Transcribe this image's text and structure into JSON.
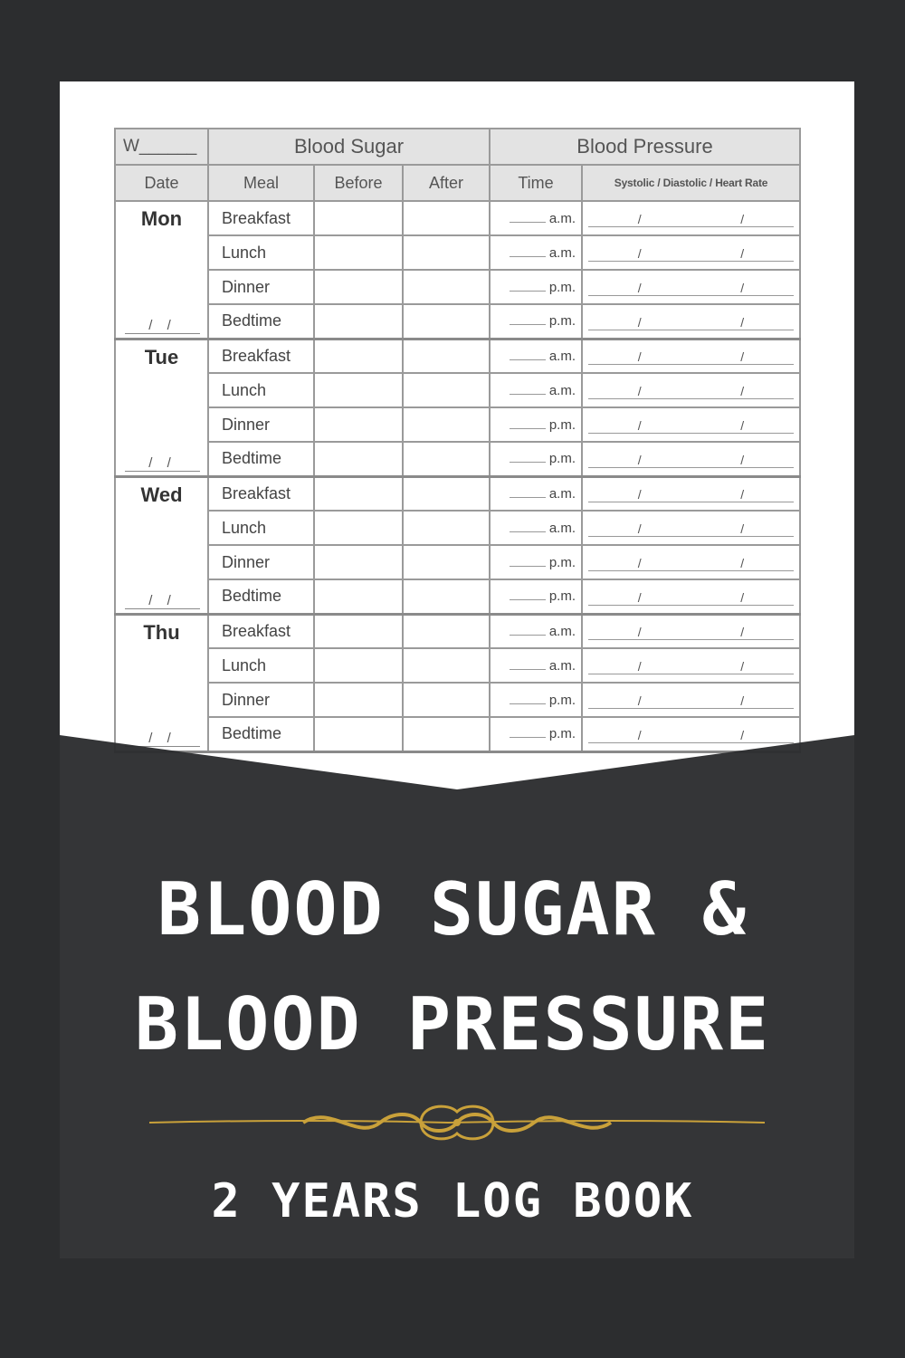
{
  "header": {
    "week_label": "W______",
    "blood_sugar": "Blood Sugar",
    "blood_pressure": "Blood Pressure",
    "col_date": "Date",
    "col_meal": "Meal",
    "col_before": "Before",
    "col_after": "After",
    "col_time": "Time",
    "col_bp": "Systolic / Diastolic / Heart Rate"
  },
  "days": [
    {
      "name": "Mon",
      "date": "/ /",
      "meals": [
        "Breakfast",
        "Lunch",
        "Dinner",
        "Bedtime"
      ],
      "times": [
        "a.m.",
        "a.m.",
        "p.m.",
        "p.m."
      ]
    },
    {
      "name": "Tue",
      "date": "/ /",
      "meals": [
        "Breakfast",
        "Lunch",
        "Dinner",
        "Bedtime"
      ],
      "times": [
        "a.m.",
        "a.m.",
        "p.m.",
        "p.m."
      ]
    },
    {
      "name": "Wed",
      "date": "/ /",
      "meals": [
        "Breakfast",
        "Lunch",
        "Dinner",
        "Bedtime"
      ],
      "times": [
        "a.m.",
        "a.m.",
        "p.m.",
        "p.m."
      ]
    },
    {
      "name": "Thu",
      "date": "/ /",
      "meals": [
        "Breakfast",
        "Lunch",
        "Dinner",
        "Bedtime"
      ],
      "times": [
        "a.m.",
        "a.m.",
        "p.m.",
        "p.m."
      ]
    }
  ],
  "bp_separator": "/",
  "cover": {
    "title_line1": "BLOOD SUGAR &",
    "title_line2": "BLOOD PRESSURE",
    "subtitle": "2 YEARS LOG BOOK"
  },
  "colors": {
    "background": "#2c2d2f",
    "ornament": "#c9a13a",
    "text": "#ffffff"
  }
}
